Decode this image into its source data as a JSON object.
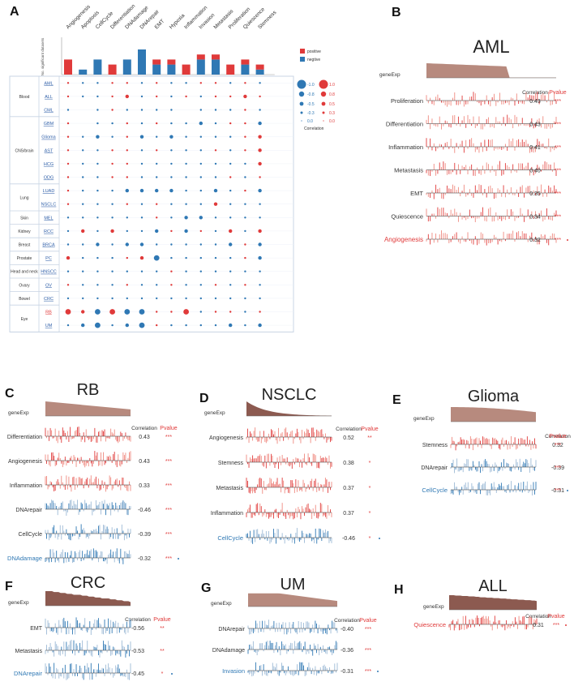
{
  "panel_letters": [
    "A",
    "B",
    "C",
    "D",
    "E",
    "F",
    "G",
    "H"
  ],
  "panelA": {
    "states": [
      "Angiogenesis",
      "Apoptosis",
      "CellCycle",
      "Differentiation",
      "DNAdamage",
      "DNArepair",
      "EMT",
      "Hypoxia",
      "Inflammation",
      "Invasion",
      "Metastasis",
      "Proliferation",
      "Quiescence",
      "Stemness"
    ],
    "bar_axis_label": "No. significant datasets",
    "legend_positive": "positive",
    "legend_negative": "negtive",
    "size_legend_neg": [
      "-1.0",
      "-0.8",
      "-0.5",
      "-0.3",
      "0.0"
    ],
    "size_legend_pos": [
      "1.0",
      "0.8",
      "0.5",
      "0.3",
      "0.0"
    ],
    "size_legend_title": "Correlation",
    "tissue_groups": [
      {
        "tissue": "Blood",
        "cancers": [
          "AML",
          "ALL",
          "CML"
        ]
      },
      {
        "tissue": "CNS/brain",
        "cancers": [
          "GBM",
          "Glioma",
          "AST",
          "HCG",
          "ODG"
        ]
      },
      {
        "tissue": "Lung",
        "cancers": [
          "LUAD",
          "NSCLC"
        ]
      },
      {
        "tissue": "Skin",
        "cancers": [
          "MEL"
        ]
      },
      {
        "tissue": "Kidney",
        "cancers": [
          "RCC"
        ]
      },
      {
        "tissue": "Breast",
        "cancers": [
          "BRCA"
        ]
      },
      {
        "tissue": "Prostate",
        "cancers": [
          "PC"
        ]
      },
      {
        "tissue": "Head and neck",
        "cancers": [
          "HNSCC"
        ]
      },
      {
        "tissue": "Ovary",
        "cancers": [
          "OV"
        ]
      },
      {
        "tissue": "Bowel",
        "cancers": [
          "CRC"
        ]
      },
      {
        "tissue": "Eye",
        "cancers": [
          "RB",
          "UM"
        ]
      }
    ],
    "highlighted_cancer": "RB",
    "bar_neg": [
      0,
      1,
      3,
      0,
      3,
      5,
      2,
      2,
      0,
      3,
      3,
      0,
      2,
      1
    ],
    "bar_pos": [
      3,
      0,
      0,
      2,
      0,
      0,
      1,
      1,
      2,
      1,
      1,
      2,
      1,
      1
    ],
    "dot_matrix": [
      [
        1,
        -1,
        -1,
        1,
        1,
        -1,
        1,
        -1,
        -1,
        1,
        1,
        -1,
        1,
        -1
      ],
      [
        1,
        -1,
        -1,
        1,
        2,
        -1,
        1,
        -1,
        1,
        -1,
        1,
        1,
        2,
        1
      ],
      [
        -1,
        0,
        -1,
        1,
        -1,
        -1,
        -1,
        -1,
        0,
        -1,
        -1,
        -1,
        1,
        -1
      ],
      [
        1,
        0,
        -1,
        -1,
        1,
        -1,
        1,
        -1,
        -1,
        -2,
        -1,
        1,
        1,
        -2
      ],
      [
        1,
        -1,
        -2,
        -1,
        1,
        -2,
        -1,
        -2,
        -1,
        -1,
        -1,
        -1,
        1,
        2
      ],
      [
        1,
        -1,
        -1,
        1,
        1,
        -1,
        1,
        -1,
        -1,
        -1,
        1,
        -1,
        1,
        2
      ],
      [
        1,
        -1,
        -1,
        1,
        1,
        -1,
        -1,
        -1,
        -1,
        -1,
        -1,
        -1,
        -1,
        2
      ],
      [
        1,
        -1,
        -1,
        1,
        1,
        -1,
        -1,
        -1,
        -1,
        -1,
        -1,
        1,
        -1,
        1
      ],
      [
        1,
        -1,
        -1,
        -1,
        -2,
        -2,
        -2,
        -2,
        -1,
        -1,
        -2,
        -1,
        1,
        -2
      ],
      [
        1,
        -1,
        -1,
        -1,
        1,
        -1,
        1,
        -1,
        -1,
        -1,
        2,
        -1,
        -1,
        -1
      ],
      [
        -1,
        -1,
        -1,
        -1,
        -1,
        -1,
        1,
        -1,
        -2,
        -2,
        -1,
        -1,
        -1,
        -1
      ],
      [
        -1,
        2,
        -1,
        2,
        -1,
        -1,
        -2,
        1,
        -2,
        1,
        -1,
        2,
        -1,
        2
      ],
      [
        -1,
        -1,
        -2,
        -1,
        -2,
        -2,
        -1,
        -1,
        -1,
        -1,
        -1,
        -2,
        1,
        -2
      ],
      [
        2,
        -1,
        -1,
        -1,
        1,
        2,
        -3,
        -1,
        -1,
        -1,
        -1,
        -1,
        1,
        -2
      ],
      [
        -1,
        -1,
        -1,
        -1,
        -1,
        -1,
        -1,
        1,
        -1,
        -1,
        -1,
        -1,
        -1,
        -1
      ],
      [
        1,
        -1,
        -1,
        -1,
        1,
        -1,
        -1,
        1,
        -1,
        -1,
        1,
        -1,
        1,
        -1
      ],
      [
        -1,
        -1,
        -1,
        -1,
        -1,
        -1,
        -1,
        -1,
        -1,
        -1,
        -1,
        -1,
        -1,
        -1
      ],
      [
        3,
        2,
        -3,
        3,
        -3,
        -3,
        1,
        1,
        3,
        -1,
        1,
        1,
        -1,
        1
      ],
      [
        -1,
        -2,
        -3,
        -1,
        -2,
        -3,
        1,
        -1,
        -1,
        -1,
        -1,
        -2,
        -1,
        -2
      ]
    ]
  },
  "panels": [
    {
      "letter": "B",
      "title": "AML",
      "gene": "geneExp",
      "corr_header": "Correlation",
      "pval_header": "Pvalue",
      "rows": [
        {
          "label": "Proliferation",
          "corr": "0.43",
          "p": "***",
          "color": "red",
          "highlight": false
        },
        {
          "label": "Differentiation",
          "corr": "0.43",
          "p": "***",
          "color": "red",
          "highlight": false
        },
        {
          "label": "Inflammation",
          "corr": "0.41",
          "p": "***",
          "color": "red",
          "highlight": false
        },
        {
          "label": "Metastasis",
          "corr": "0.40",
          "p": "***",
          "color": "red",
          "highlight": false
        },
        {
          "label": "EMT",
          "corr": "0.35",
          "p": "***",
          "color": "red",
          "highlight": false
        },
        {
          "label": "Quiescence",
          "corr": "0.34",
          "p": "***",
          "color": "red",
          "highlight": false
        },
        {
          "label": "Angiogenesis",
          "corr": "0.32",
          "p": "***",
          "color": "red",
          "highlight": true
        }
      ]
    },
    {
      "letter": "C",
      "title": "RB",
      "gene": "geneExp",
      "corr_header": "Correlation",
      "pval_header": "Pvalue",
      "rows": [
        {
          "label": "Differentiation",
          "corr": "0.43",
          "p": "***",
          "color": "red",
          "highlight": false
        },
        {
          "label": "Angiogenesis",
          "corr": "0.43",
          "p": "***",
          "color": "red",
          "highlight": false
        },
        {
          "label": "Inflammation",
          "corr": "0.33",
          "p": "***",
          "color": "red",
          "highlight": false
        },
        {
          "label": "DNArepair",
          "corr": "-0.46",
          "p": "***",
          "color": "blue",
          "highlight": false
        },
        {
          "label": "CellCycle",
          "corr": "-0.39",
          "p": "***",
          "color": "blue",
          "highlight": false
        },
        {
          "label": "DNAdamage",
          "corr": "-0.32",
          "p": "***",
          "color": "blue",
          "highlight": true
        }
      ]
    },
    {
      "letter": "D",
      "title": "NSCLC",
      "gene": "geneExp",
      "corr_header": "Correlation",
      "pval_header": "Pvalue",
      "rows": [
        {
          "label": "Angiogenesis",
          "corr": "0.52",
          "p": "**",
          "color": "red",
          "highlight": false
        },
        {
          "label": "Stemness",
          "corr": "0.38",
          "p": "*",
          "color": "red",
          "highlight": false
        },
        {
          "label": "Metastasis",
          "corr": "0.37",
          "p": "*",
          "color": "red",
          "highlight": false
        },
        {
          "label": "Inflammation",
          "corr": "0.37",
          "p": "*",
          "color": "red",
          "highlight": false
        },
        {
          "label": "CellCycle",
          "corr": "-0.46",
          "p": "*",
          "color": "blue",
          "highlight": true
        }
      ]
    },
    {
      "letter": "E",
      "title": "Glioma",
      "gene": "geneExp",
      "corr_header": "Correlation",
      "pval_header": "Pvalue",
      "rows": [
        {
          "label": "Stemness",
          "corr": "0.32",
          "p": "***",
          "color": "red",
          "highlight": false
        },
        {
          "label": "DNArepair",
          "corr": "-0.39",
          "p": "***",
          "color": "blue",
          "highlight": false
        },
        {
          "label": "CellCycle",
          "corr": "-0.31",
          "p": "***",
          "color": "blue",
          "highlight": true
        }
      ]
    },
    {
      "letter": "F",
      "title": "CRC",
      "gene": "geneExp",
      "corr_header": "Correlation",
      "pval_header": "Pvalue",
      "rows": [
        {
          "label": "EMT",
          "corr": "-0.56",
          "p": "**",
          "color": "blue",
          "highlight": false
        },
        {
          "label": "Metastasis",
          "corr": "-0.53",
          "p": "**",
          "color": "blue",
          "highlight": false
        },
        {
          "label": "DNArepair",
          "corr": "-0.45",
          "p": "*",
          "color": "blue",
          "highlight": true
        }
      ]
    },
    {
      "letter": "G",
      "title": "UM",
      "gene": "geneExp",
      "corr_header": "Correlation",
      "pval_header": "Pvalue",
      "rows": [
        {
          "label": "DNArepair",
          "corr": "-0.40",
          "p": "***",
          "color": "blue",
          "highlight": false
        },
        {
          "label": "DNAdamage",
          "corr": "-0.36",
          "p": "***",
          "color": "blue",
          "highlight": false
        },
        {
          "label": "Invasion",
          "corr": "-0.31",
          "p": "***",
          "color": "blue",
          "highlight": true
        }
      ]
    },
    {
      "letter": "H",
      "title": "ALL",
      "gene": "geneExp",
      "corr_header": "Correlation",
      "pval_header": "Pvalue",
      "rows": [
        {
          "label": "Quiescence",
          "corr": "0.31",
          "p": "***",
          "color": "red",
          "highlight": true
        }
      ]
    }
  ],
  "colors": {
    "red": "#e03a3a",
    "blue": "#2f78b4",
    "red_light": "#ef8a80",
    "blue_light": "#9dbad6",
    "gene": "#b78a7e",
    "gene_dark": "#8c5a50",
    "grid": "#c8d4e4",
    "text": "#333333"
  }
}
